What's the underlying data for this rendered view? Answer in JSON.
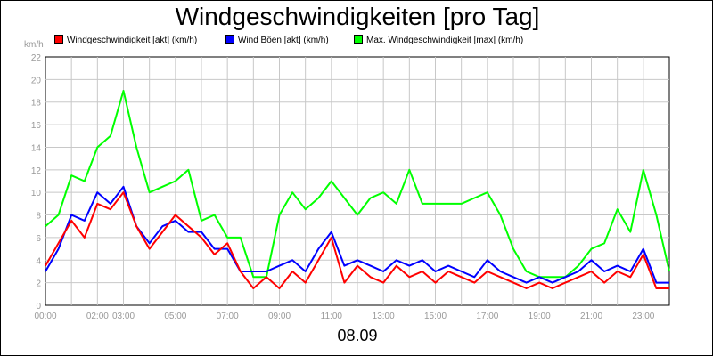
{
  "chart_data": {
    "type": "line",
    "title": "Windgeschwindigkeiten [pro Tag]",
    "unit_label": "km/h",
    "date_label": "08.09",
    "ylim": [
      0,
      22
    ],
    "yticks": [
      0,
      2,
      4,
      6,
      8,
      10,
      12,
      14,
      16,
      18,
      20,
      22
    ],
    "xlim": [
      0,
      24
    ],
    "xticks": [
      {
        "h": 0,
        "label": "00:00"
      },
      {
        "h": 2,
        "label": "02:00"
      },
      {
        "h": 3,
        "label": "03:00"
      },
      {
        "h": 5,
        "label": "05:00"
      },
      {
        "h": 7,
        "label": "07:00"
      },
      {
        "h": 9,
        "label": "09:00"
      },
      {
        "h": 11,
        "label": "11:00"
      },
      {
        "h": 13,
        "label": "13:00"
      },
      {
        "h": 15,
        "label": "15:00"
      },
      {
        "h": 17,
        "label": "17:00"
      },
      {
        "h": 19,
        "label": "19:00"
      },
      {
        "h": 21,
        "label": "21:00"
      },
      {
        "h": 23,
        "label": "23:00"
      }
    ],
    "grid": true,
    "legend_position": "top",
    "x": [
      0,
      0.5,
      1,
      1.5,
      2,
      2.5,
      3,
      3.5,
      4,
      4.5,
      5,
      5.5,
      6,
      6.5,
      7,
      7.5,
      8,
      8.5,
      9,
      9.5,
      10,
      10.5,
      11,
      11.5,
      12,
      12.5,
      13,
      13.5,
      14,
      14.5,
      15,
      15.5,
      16,
      16.5,
      17,
      17.5,
      18,
      18.5,
      19,
      19.5,
      20,
      20.5,
      21,
      21.5,
      22,
      22.5,
      23,
      23.5,
      24
    ],
    "series": [
      {
        "name": "Windgeschwindigkeit [akt] (km/h)",
        "color": "#ff0000",
        "values": [
          3.5,
          5.5,
          7.5,
          6,
          9,
          8.5,
          10,
          7,
          5,
          6.5,
          8,
          7,
          6,
          4.5,
          5.5,
          3,
          1.5,
          2.5,
          1.5,
          3,
          2,
          4,
          6,
          2,
          3.5,
          2.5,
          2,
          3.5,
          2.5,
          3,
          2,
          3,
          2.5,
          2,
          3,
          2.5,
          2,
          1.5,
          2,
          1.5,
          2,
          2.5,
          3,
          2,
          3,
          2.5,
          4.5,
          1.5,
          1.5
        ]
      },
      {
        "name": "Wind Böen [akt] (km/h)",
        "color": "#0000ff",
        "values": [
          3,
          5,
          8,
          7.5,
          10,
          9,
          10.5,
          7,
          5.5,
          7,
          7.5,
          6.5,
          6.5,
          5,
          5,
          3,
          3,
          3,
          3.5,
          4,
          3,
          5,
          6.5,
          3.5,
          4,
          3.5,
          3,
          4,
          3.5,
          4,
          3,
          3.5,
          3,
          2.5,
          4,
          3,
          2.5,
          2,
          2.5,
          2,
          2.5,
          3,
          4,
          3,
          3.5,
          3,
          5,
          2,
          2
        ]
      },
      {
        "name": "Max. Windgeschwindigkeit [max] (km/h)",
        "color": "#00ff00",
        "values": [
          7,
          8,
          11.5,
          11,
          14,
          15,
          19,
          14,
          10,
          10.5,
          11,
          12,
          7.5,
          8,
          6,
          6,
          2.5,
          2.5,
          8,
          10,
          8.5,
          9.5,
          11,
          9.5,
          8,
          9.5,
          10,
          9,
          12,
          9,
          9,
          9,
          9,
          9.5,
          10,
          8,
          5,
          3,
          2.5,
          2.5,
          2.5,
          3.5,
          5,
          5.5,
          8.5,
          6.5,
          12,
          8,
          3
        ]
      }
    ]
  }
}
